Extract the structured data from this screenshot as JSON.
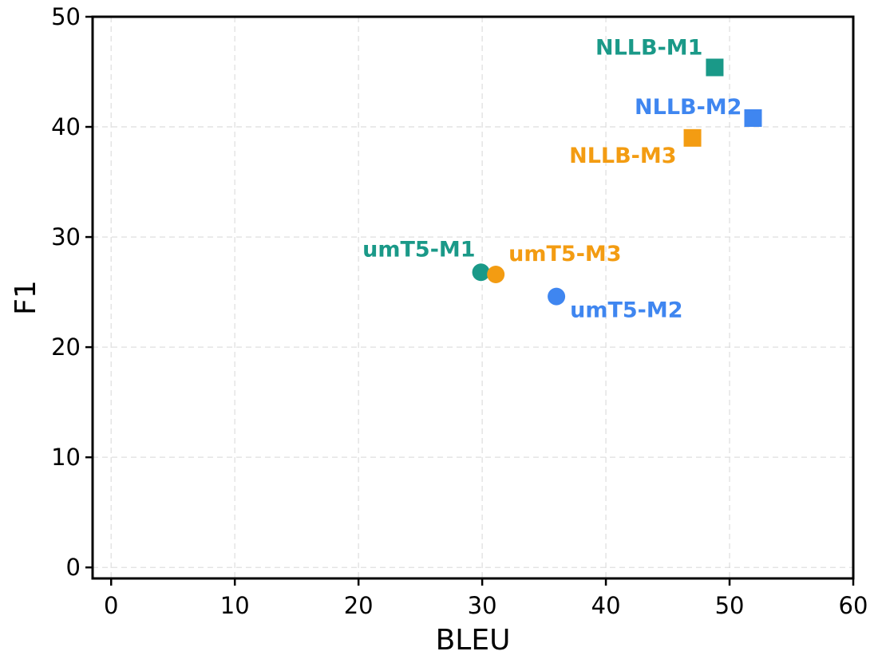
{
  "chart_data": {
    "type": "scatter",
    "title": "",
    "xlabel": "BLEU",
    "ylabel": "F1",
    "xlim": [
      -1.5,
      60
    ],
    "ylim": [
      -1,
      50
    ],
    "xticks": [
      0,
      10,
      20,
      30,
      40,
      50,
      60
    ],
    "yticks": [
      0,
      10,
      20,
      30,
      40,
      50
    ],
    "xtick_labels": [
      "0",
      "10",
      "20",
      "30",
      "40",
      "50",
      "60"
    ],
    "ytick_labels": [
      "0",
      "10",
      "20",
      "30",
      "40",
      "50"
    ],
    "grid": true,
    "legend": "none",
    "points": [
      {
        "label": "NLLB-M1",
        "x": 48.8,
        "y": 45.4,
        "marker": "square",
        "color": "#1a9988"
      },
      {
        "label": "NLLB-M2",
        "x": 51.9,
        "y": 40.8,
        "marker": "square",
        "color": "#3f86f0"
      },
      {
        "label": "NLLB-M3",
        "x": 47.0,
        "y": 39.0,
        "marker": "square",
        "color": "#f39c12"
      },
      {
        "label": "umT5-M1",
        "x": 29.9,
        "y": 26.8,
        "marker": "circle",
        "color": "#1a9988"
      },
      {
        "label": "umT5-M3",
        "x": 31.1,
        "y": 26.6,
        "marker": "circle",
        "color": "#f39c12"
      },
      {
        "label": "umT5-M2",
        "x": 36.0,
        "y": 24.6,
        "marker": "circle",
        "color": "#3f86f0"
      }
    ]
  }
}
